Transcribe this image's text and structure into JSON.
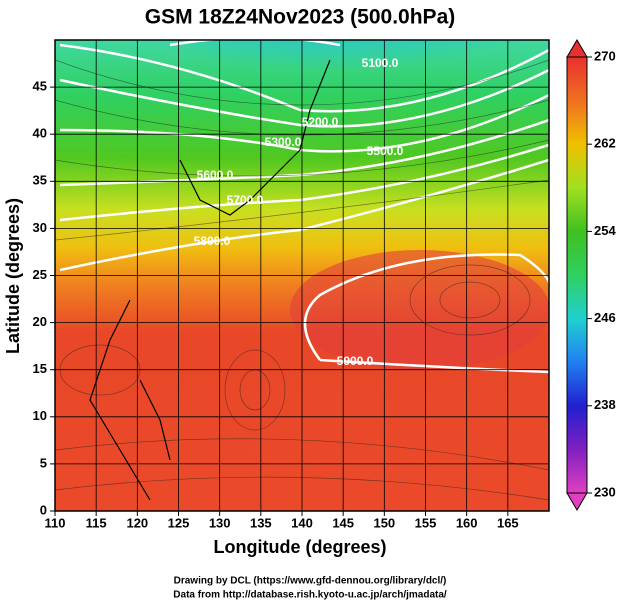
{
  "chart_data": {
    "type": "map",
    "title": "GSM 18Z24Nov2023 (500.0hPa)",
    "x_label": "Longitude (degrees)",
    "y_label": "Latitude  (degrees)",
    "xlim": [
      110,
      170
    ],
    "xticks": [
      110,
      115,
      120,
      125,
      130,
      135,
      140,
      145,
      150,
      155,
      160,
      165
    ],
    "ylim": [
      0,
      50
    ],
    "yticks": [
      0,
      5,
      10,
      15,
      20,
      25,
      30,
      35,
      40,
      45
    ],
    "grid": true,
    "colorbar": {
      "lim": [
        230,
        270
      ],
      "ticks": [
        230,
        238,
        246,
        254,
        262,
        270
      ]
    },
    "contour_labels": [
      "5100.0",
      "5200.0",
      "5300.0",
      "5500.0",
      "5600.0",
      "5700.0",
      "5800.0",
      "5900.0"
    ],
    "credits": [
      "Drawing by DCL (https://www.gfd-dennou.org/library/dcl/)",
      "Data from http://database.rish.kyoto-u.ac.jp/arch/jmadata/"
    ]
  }
}
